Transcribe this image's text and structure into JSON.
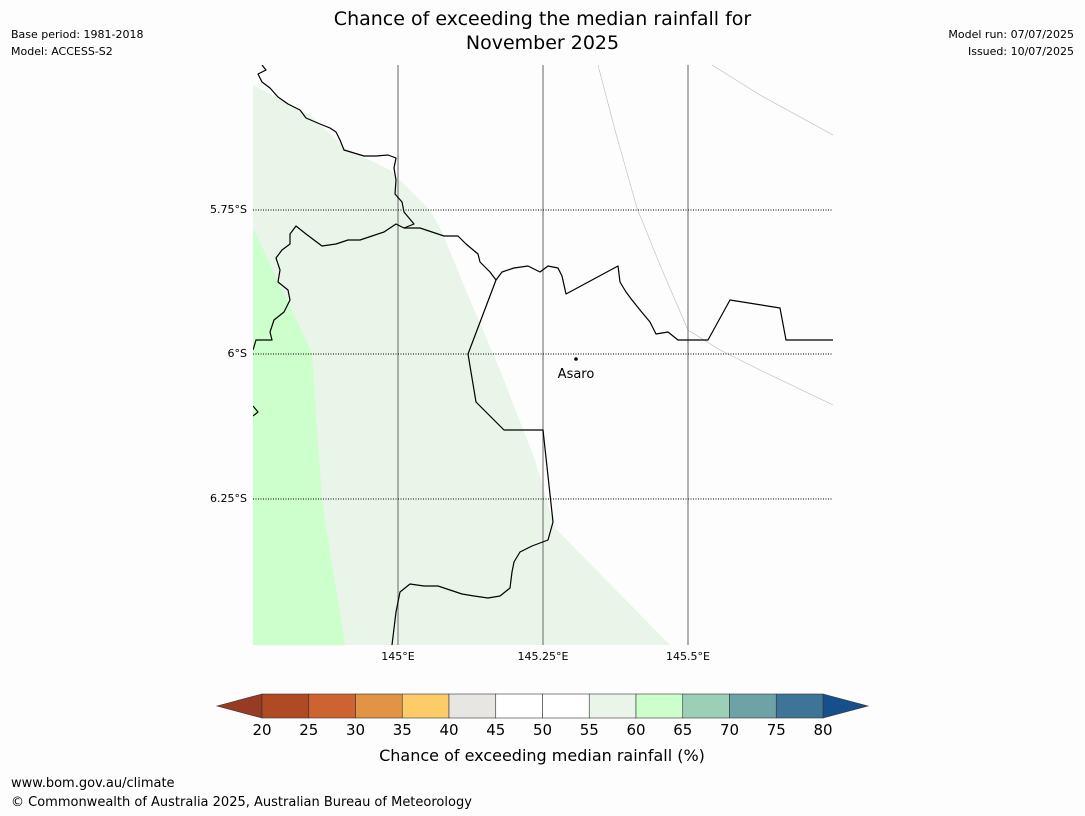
{
  "title_line1": "Chance of exceeding the median rainfall for",
  "title_line2": "November 2025",
  "meta_left": {
    "base_period": "Base period: 1981-2018",
    "model": "Model: ACCESS-S2"
  },
  "meta_right": {
    "model_run": "Model run: 07/07/2025",
    "issued": "Issued: 10/07/2025"
  },
  "map": {
    "lat_labels": [
      "5.75°S",
      "6°S",
      "6.25°S"
    ],
    "lon_labels": [
      "145°E",
      "145.25°E",
      "145.5°E"
    ],
    "place": "Asaro",
    "fills": {
      "light_green": "#e9f5e9",
      "green": "#ccffcc"
    }
  },
  "colorbar": {
    "ticks": [
      "20",
      "25",
      "30",
      "35",
      "40",
      "45",
      "50",
      "55",
      "60",
      "65",
      "70",
      "75",
      "80"
    ],
    "colors": [
      "#b04a25",
      "#cc6330",
      "#e29445",
      "#fdcc69",
      "#e8e6e2",
      "#ffffff",
      "#ffffff",
      "#e9f5e9",
      "#ccffcc",
      "#9ccfb8",
      "#6da3a7",
      "#3f7499"
    ],
    "under_color": "#973b22",
    "over_color": "#164f8c",
    "label": "Chance of exceeding median rainfall (%)"
  },
  "footer": {
    "url": "www.bom.gov.au/climate",
    "copyright": "© Commonwealth of Australia 2025, Australian Bureau of Meteorology"
  }
}
